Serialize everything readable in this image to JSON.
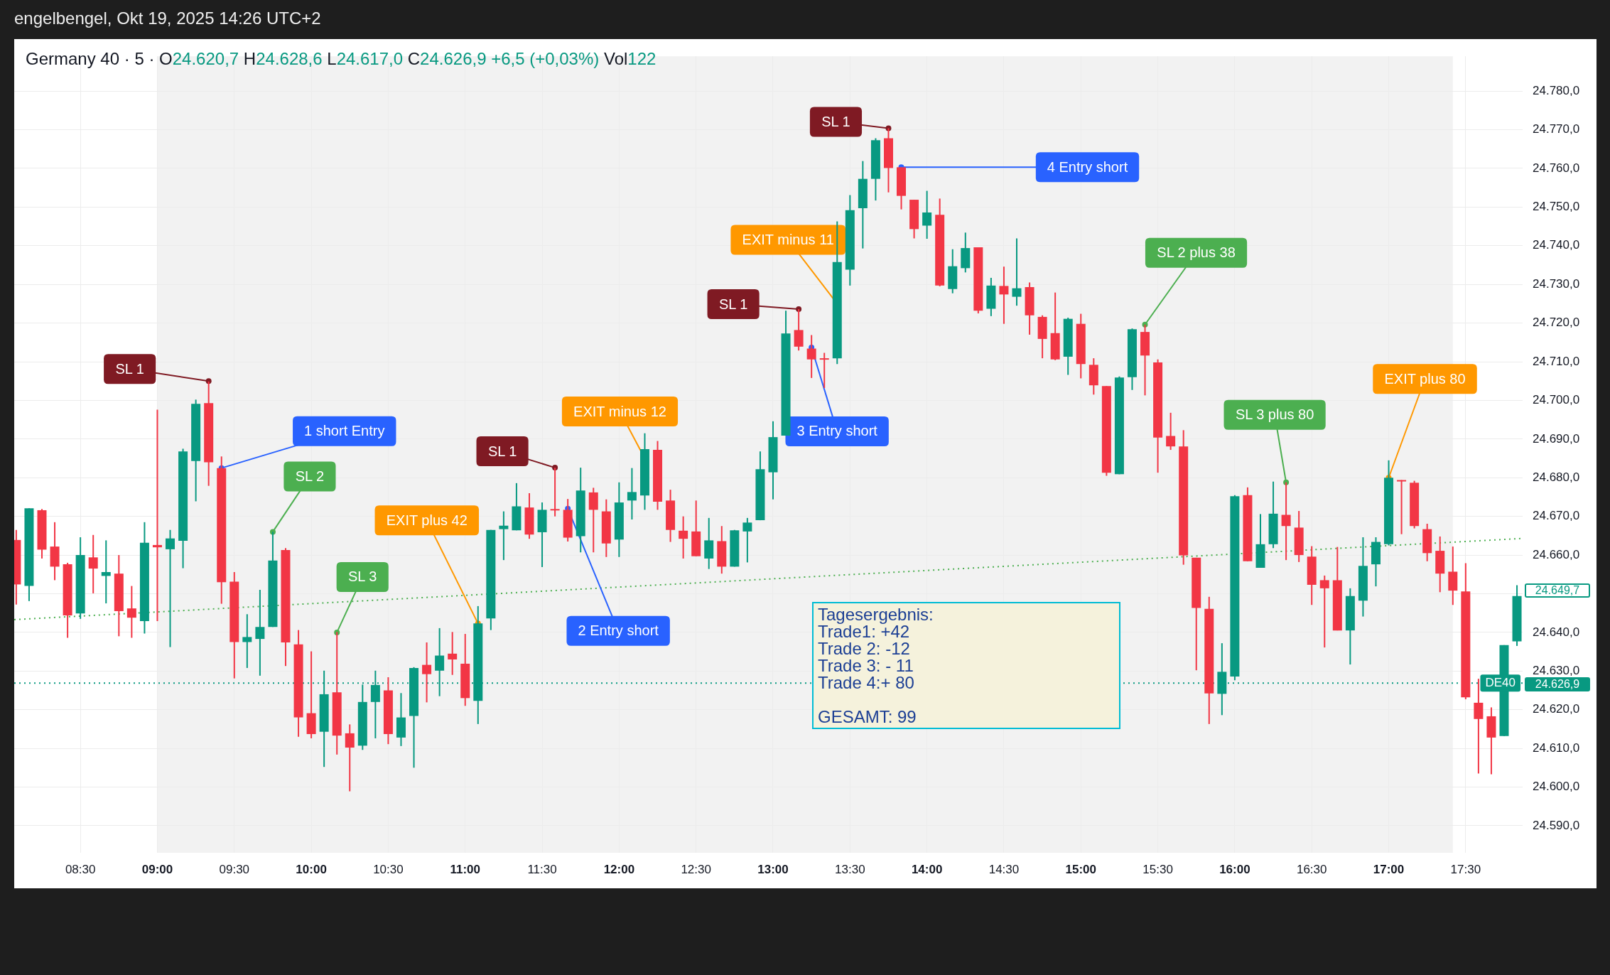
{
  "chart_data": {
    "type": "candlestick",
    "title": "engelbengel, Okt 19, 2025 14:26 UTC+2",
    "subtitle": "Germany 40 · 5 · O24.620,7 H24.628,6 L24.617,0 C24.626,9 +6,5 (+0,03%) Vol122",
    "x": [
      8.0833,
      8.1667,
      8.25,
      8.3333,
      8.4167,
      8.5,
      8.5833,
      8.6667,
      8.75,
      8.8333,
      8.9167,
      9,
      9.0833,
      9.1667,
      9.25,
      9.3333,
      9.4167,
      9.5,
      9.5833,
      9.6667,
      9.75,
      9.8333,
      9.9167,
      10,
      10.0833,
      10.1667,
      10.25,
      10.3333,
      10.4167,
      10.5,
      10.5833,
      10.6667,
      10.75,
      10.8333,
      10.9167,
      11,
      11.0833,
      11.1667,
      11.25,
      11.3333,
      11.4167,
      11.5,
      11.5833,
      11.6667,
      11.75,
      11.8333,
      11.9167,
      12,
      12.0833,
      12.1667,
      12.25,
      12.3333,
      12.4167,
      12.5,
      12.5833,
      12.6667,
      12.75,
      12.8333,
      12.9167,
      13,
      13.0833,
      13.1667,
      13.25,
      13.3333,
      13.4167,
      13.5,
      13.5833,
      13.6667,
      13.75,
      13.8333,
      13.9167,
      14,
      14.0833,
      14.1667,
      14.25,
      14.3333,
      14.4167,
      14.5,
      14.5833,
      14.6667,
      14.75,
      14.8333,
      14.9167,
      15,
      15.0833,
      15.1667,
      15.25,
      15.3333,
      15.4167,
      15.5,
      15.5833,
      15.6667,
      15.75,
      15.8333,
      15.9167,
      16,
      16.0833,
      16.1667,
      16.25,
      16.3333,
      16.4167,
      16.5,
      16.5833,
      16.6667,
      16.75,
      16.8333,
      16.9167,
      17,
      17.0833,
      17.1667,
      17.25,
      17.3333,
      17.4167,
      17.5,
      17.5833,
      17.6667,
      17.75,
      17.8333
    ],
    "ohlc": [
      [
        24663.9,
        24666.5,
        24647.2,
        24652.4
      ],
      [
        24652.0,
        24672.1,
        24648.1,
        24672.1
      ],
      [
        24671.6,
        24671.9,
        24659.1,
        24661.4
      ],
      [
        24662.2,
        24668.5,
        24653.5,
        24657.0
      ],
      [
        24657.6,
        24658.0,
        24638.6,
        24644.4
      ],
      [
        24644.9,
        24664.6,
        24643.5,
        24660.0
      ],
      [
        24659.4,
        24665.2,
        24650.1,
        24656.5
      ],
      [
        24654.6,
        24663.8,
        24647.5,
        24655.6
      ],
      [
        24655.2,
        24660.0,
        24639.0,
        24645.5
      ],
      [
        24646.2,
        24652.0,
        24638.6,
        24643.8
      ],
      [
        24642.9,
        24668.5,
        24639.7,
        24663.2
      ],
      [
        24662.6,
        24697.6,
        24642.9,
        24662.0
      ],
      [
        24661.5,
        24666.5,
        24636.2,
        24664.3
      ],
      [
        24663.7,
        24687.5,
        24656.6,
        24686.8
      ],
      [
        24684.3,
        24700.2,
        24673.9,
        24699.1
      ],
      [
        24699.3,
        24704.9,
        24677.9,
        24684.0
      ],
      [
        24682.5,
        24685.5,
        24647.4,
        24653.0
      ],
      [
        24653.1,
        24655.6,
        24628.1,
        24637.5
      ],
      [
        24637.5,
        24644.7,
        24630.8,
        24638.8
      ],
      [
        24638.3,
        24651.0,
        24628.8,
        24641.4
      ],
      [
        24641.4,
        24666.0,
        24641.4,
        24658.6
      ],
      [
        24661.3,
        24661.8,
        24631.3,
        24637.4
      ],
      [
        24636.9,
        24640.6,
        24613.0,
        24618.0
      ],
      [
        24619.1,
        24635.1,
        24612.6,
        24613.7
      ],
      [
        24614.3,
        24630.1,
        24605.2,
        24624.0
      ],
      [
        24624.5,
        24640.1,
        24608.4,
        24613.3
      ],
      [
        24613.9,
        24616.2,
        24598.9,
        24610.2
      ],
      [
        24610.7,
        24626.5,
        24609.6,
        24622.0
      ],
      [
        24622.0,
        24630.1,
        24612.6,
        24626.4
      ],
      [
        24625.0,
        24628.4,
        24611.1,
        24613.7
      ],
      [
        24612.8,
        24624.3,
        24610.6,
        24618.0
      ],
      [
        24618.4,
        24631.0,
        24605.0,
        24630.8
      ],
      [
        24631.6,
        24637.4,
        24621.9,
        24629.2
      ],
      [
        24630.1,
        24641.1,
        24623.5,
        24634.0
      ],
      [
        24634.5,
        24640.1,
        24629.0,
        24633.0
      ],
      [
        24631.9,
        24639.6,
        24621.0,
        24623.0
      ],
      [
        24622.3,
        24646.8,
        24616.3,
        24642.3
      ],
      [
        24643.6,
        24666.5,
        24640.6,
        24666.5
      ],
      [
        24666.7,
        24671.3,
        24658.7,
        24667.6
      ],
      [
        24666.4,
        24678.6,
        24666.4,
        24672.6
      ],
      [
        24672.3,
        24676.0,
        24664.2,
        24665.3
      ],
      [
        24665.9,
        24673.6,
        24656.9,
        24671.7
      ],
      [
        24671.9,
        24682.6,
        24670.0,
        24671.7
      ],
      [
        24671.7,
        24674.5,
        24663.5,
        24664.5
      ],
      [
        24664.9,
        24682.6,
        24660.7,
        24676.7
      ],
      [
        24676.2,
        24677.4,
        24660.7,
        24671.7
      ],
      [
        24671.3,
        24674.4,
        24659.5,
        24663.0
      ],
      [
        24664.0,
        24678.8,
        24659.5,
        24673.6
      ],
      [
        24674.1,
        24682.5,
        24669.2,
        24676.3
      ],
      [
        24675.4,
        24691.5,
        24671.7,
        24687.4
      ],
      [
        24687.2,
        24689.5,
        24671.7,
        24673.8
      ],
      [
        24674.1,
        24676.9,
        24663.4,
        24666.5
      ],
      [
        24666.3,
        24670.0,
        24659.1,
        24664.2
      ],
      [
        24666.1,
        24674.1,
        24659.7,
        24659.7
      ],
      [
        24659.1,
        24669.6,
        24656.4,
        24663.8
      ],
      [
        24663.6,
        24667.5,
        24655.2,
        24657.0
      ],
      [
        24657.0,
        24666.5,
        24657.0,
        24666.4
      ],
      [
        24666.1,
        24669.6,
        24658.1,
        24668.4
      ],
      [
        24669.0,
        24686.8,
        24669.0,
        24682.2
      ],
      [
        24681.4,
        24694.6,
        24674.4,
        24690.5
      ],
      [
        24690.9,
        24723.2,
        24690.9,
        24717.3
      ],
      [
        24718.2,
        24723.6,
        24712.9,
        24713.9
      ],
      [
        24713.4,
        24716.9,
        24705.8,
        24710.6
      ],
      [
        24710.9,
        24712.3,
        24703.2,
        24710.6
      ],
      [
        24710.9,
        24746.3,
        24709.4,
        24735.8
      ],
      [
        24733.8,
        24753.1,
        24729.7,
        24749.2
      ],
      [
        24749.7,
        24761.9,
        24739.3,
        24757.3
      ],
      [
        24757.3,
        24767.8,
        24751.7,
        24767.3
      ],
      [
        24767.8,
        24770.4,
        24753.8,
        24760.1
      ],
      [
        24760.3,
        24760.3,
        24749.4,
        24752.9
      ],
      [
        24751.9,
        24751.9,
        24741.9,
        24744.3
      ],
      [
        24745.2,
        24754.2,
        24741.8,
        24748.6
      ],
      [
        24748.0,
        24752.2,
        24729.5,
        24729.7
      ],
      [
        24728.8,
        24739.1,
        24727.7,
        24734.7
      ],
      [
        24734.2,
        24743.4,
        24733.1,
        24739.4
      ],
      [
        24739.6,
        24739.6,
        24722.5,
        24723.2
      ],
      [
        24723.7,
        24731.7,
        24721.8,
        24729.7
      ],
      [
        24729.6,
        24734.6,
        24719.8,
        24727.4
      ],
      [
        24726.8,
        24741.9,
        24724.5,
        24729.0
      ],
      [
        24729.3,
        24730.5,
        24717.0,
        24722.0
      ],
      [
        24721.6,
        24722.0,
        24710.9,
        24715.9
      ],
      [
        24717.4,
        24727.9,
        24710.4,
        24710.6
      ],
      [
        24711.3,
        24721.4,
        24706.6,
        24721.1
      ],
      [
        24719.8,
        24722.4,
        24705.7,
        24709.4
      ],
      [
        24709.2,
        24710.9,
        24701.5,
        24703.9
      ],
      [
        24703.7,
        24703.7,
        24680.5,
        24681.3
      ],
      [
        24680.9,
        24706.2,
        24680.9,
        24705.9
      ],
      [
        24706.0,
        24718.6,
        24702.7,
        24718.4
      ],
      [
        24717.7,
        24719.6,
        24701.3,
        24711.6
      ],
      [
        24709.8,
        24710.6,
        24681.3,
        24690.4
      ],
      [
        24690.8,
        24696.8,
        24687.2,
        24688.1
      ],
      [
        24688.1,
        24692.3,
        24657.5,
        24659.9
      ],
      [
        24659.3,
        24659.3,
        24630.2,
        24646.3
      ],
      [
        24646.1,
        24649.2,
        24616.3,
        24624.2
      ],
      [
        24624.1,
        24637.2,
        24618.6,
        24629.8
      ],
      [
        24628.6,
        24675.5,
        24627.6,
        24675.2
      ],
      [
        24675.5,
        24677.5,
        24658.4,
        24658.4
      ],
      [
        24656.7,
        24670.6,
        24656.7,
        24662.8
      ],
      [
        24662.8,
        24679.0,
        24661.8,
        24670.7
      ],
      [
        24670.4,
        24678.8,
        24658.7,
        24667.5
      ],
      [
        24667.1,
        24671.4,
        24658.2,
        24660.0
      ],
      [
        24659.6,
        24662.3,
        24647.1,
        24652.3
      ],
      [
        24653.5,
        24654.7,
        24636.1,
        24651.4
      ],
      [
        24653.5,
        24662.1,
        24640.5,
        24640.5
      ],
      [
        24640.5,
        24651.4,
        24631.7,
        24649.4
      ],
      [
        24648.2,
        24664.6,
        24644.1,
        24657.2
      ],
      [
        24657.6,
        24664.6,
        24651.9,
        24663.4
      ],
      [
        24662.8,
        24684.5,
        24662.5,
        24680.0
      ],
      [
        24679.4,
        24679.4,
        24665.4,
        24679.1
      ],
      [
        24678.7,
        24679.2,
        24666.9,
        24667.5
      ],
      [
        24666.7,
        24668.1,
        24658.4,
        24660.5
      ],
      [
        24661.1,
        24664.8,
        24650.4,
        24655.2
      ],
      [
        24655.7,
        24662.2,
        24647.1,
        24650.8
      ],
      [
        24650.6,
        24657.9,
        24622.7,
        24623.2
      ],
      [
        24621.8,
        24628.0,
        24603.5,
        24617.6
      ],
      [
        24618.3,
        24620.6,
        24603.3,
        24612.8
      ],
      [
        24613.2,
        24636.7,
        24613.2,
        24636.7
      ],
      [
        24637.7,
        24652.2,
        24636.5,
        24649.4
      ]
    ],
    "colors": [
      "#f23645",
      "#089981",
      "#f23645",
      "#f23645",
      "#f23645",
      "#089981",
      "#f23645",
      "#089981",
      "#f23645",
      "#f23645",
      "#089981",
      "#f23645",
      "#089981",
      "#089981",
      "#089981",
      "#f23645",
      "#f23645",
      "#f23645",
      "#089981",
      "#089981",
      "#089981",
      "#f23645",
      "#f23645",
      "#f23645",
      "#089981",
      "#f23645",
      "#f23645",
      "#089981",
      "#089981",
      "#f23645",
      "#089981",
      "#089981",
      "#f23645",
      "#089981",
      "#f23645",
      "#f23645",
      "#089981",
      "#089981",
      "#089981",
      "#089981",
      "#f23645",
      "#089981",
      "#f23645",
      "#f23645",
      "#089981",
      "#f23645",
      "#f23645",
      "#089981",
      "#089981",
      "#089981",
      "#f23645",
      "#f23645",
      "#f23645",
      "#f23645",
      "#089981",
      "#f23645",
      "#089981",
      "#089981",
      "#089981",
      "#089981",
      "#089981",
      "#f23645",
      "#f23645",
      "#f23645",
      "#089981",
      "#089981",
      "#089981",
      "#089981",
      "#f23645",
      "#f23645",
      "#f23645",
      "#089981",
      "#f23645",
      "#089981",
      "#089981",
      "#f23645",
      "#089981",
      "#f23645",
      "#089981",
      "#f23645",
      "#f23645",
      "#f23645",
      "#089981",
      "#f23645",
      "#f23645",
      "#f23645",
      "#089981",
      "#089981",
      "#f23645",
      "#f23645",
      "#f23645",
      "#f23645",
      "#f23645",
      "#f23645",
      "#089981",
      "#089981",
      "#f23645",
      "#089981",
      "#089981",
      "#f23645",
      "#f23645",
      "#f23645",
      "#f23645",
      "#f23645",
      "#089981",
      "#089981",
      "#089981",
      "#089981",
      "#f23645",
      "#f23645",
      "#f23645",
      "#f23645",
      "#f23645",
      "#f23645",
      "#f23645",
      "#f23645",
      "#089981",
      "#089981"
    ],
    "series": [
      {
        "type": "line",
        "x": [
          8.07,
          17.87
        ],
        "values": [
          24643.3,
          24664.3
        ],
        "color": "#4caf50",
        "line_style": "dotted"
      }
    ],
    "xlim": [
      8.07,
      17.87
    ],
    "xticks": [
      {
        "value": 8.5,
        "label": "08:30"
      },
      {
        "value": 9,
        "label": "09:00"
      },
      {
        "value": 9.5,
        "label": "09:30"
      },
      {
        "value": 10,
        "label": "10:00"
      },
      {
        "value": 10.5,
        "label": "10:30"
      },
      {
        "value": 11,
        "label": "11:00"
      },
      {
        "value": 11.5,
        "label": "11:30"
      },
      {
        "value": 12,
        "label": "12:00"
      },
      {
        "value": 12.5,
        "label": "12:30"
      },
      {
        "value": 13,
        "label": "13:00"
      },
      {
        "value": 13.5,
        "label": "13:30"
      },
      {
        "value": 14,
        "label": "14:00"
      },
      {
        "value": 14.5,
        "label": "14:30"
      },
      {
        "value": 15,
        "label": "15:00"
      },
      {
        "value": 15.5,
        "label": "15:30"
      },
      {
        "value": 16,
        "label": "16:00"
      },
      {
        "value": 16.5,
        "label": "16:30"
      },
      {
        "value": 17,
        "label": "17:00"
      },
      {
        "value": 17.5,
        "label": "17:30"
      }
    ],
    "ylim": [
      24583,
      24789
    ],
    "yticks": [
      {
        "value": 24590,
        "label": "24.590,0"
      },
      {
        "value": 24600,
        "label": "24.600,0"
      },
      {
        "value": 24610,
        "label": "24.610,0"
      },
      {
        "value": 24620,
        "label": "24.620,0"
      },
      {
        "value": 24630,
        "label": "24.630,0"
      },
      {
        "value": 24640,
        "label": "24.640,0"
      },
      {
        "value": 24650,
        "label": null
      },
      {
        "value": 24660,
        "label": "24.660,0"
      },
      {
        "value": 24670,
        "label": "24.670,0"
      },
      {
        "value": 24680,
        "label": "24.680,0"
      },
      {
        "value": 24690,
        "label": "24.690,0"
      },
      {
        "value": 24700,
        "label": "24.700,0"
      },
      {
        "value": 24710,
        "label": "24.710,0"
      },
      {
        "value": 24720,
        "label": "24.720,0"
      },
      {
        "value": 24730,
        "label": "24.730,0"
      },
      {
        "value": 24740,
        "label": "24.740,0"
      },
      {
        "value": 24750,
        "label": "24.750,0"
      },
      {
        "value": 24760,
        "label": "24.760,0"
      },
      {
        "value": 24770,
        "label": "24.770,0"
      },
      {
        "value": 24780,
        "label": "24.780,0"
      }
    ],
    "ref_lines": [
      {
        "axis": "y",
        "value": 24626.9,
        "label": "DE40",
        "color": "#089981",
        "line_style": "dotted"
      }
    ],
    "bands": [
      {
        "axis": "x",
        "from": 9,
        "to": 17.4167,
        "color": "#f2f2f2"
      }
    ],
    "annotations": [
      {
        "text": "SL 1",
        "x": 9.3333,
        "y": 24705
      },
      {
        "text": "1 short Entry",
        "x": 9.4167,
        "y": 24682.5
      },
      {
        "text": "SL 2",
        "x": 9.75,
        "y": 24666
      },
      {
        "text": "SL 3",
        "x": 10.1667,
        "y": 24640
      },
      {
        "text": "EXIT plus 42",
        "x": 11.0833,
        "y": 24642.3
      },
      {
        "text": "SL 1",
        "x": 11.5833,
        "y": 24682.6
      },
      {
        "text": "2 Entry short",
        "x": 11.6667,
        "y": 24672
      },
      {
        "text": "EXIT minus 12",
        "x": 12.1667,
        "y": 24685
      },
      {
        "text": "SL 1",
        "x": 13.1667,
        "y": 24723.6
      },
      {
        "text": "3 Entry short",
        "x": 13.25,
        "y": 24713.7
      },
      {
        "text": "EXIT minus 11",
        "x": 13.4167,
        "y": 24725
      },
      {
        "text": "SL 1",
        "x": 13.75,
        "y": 24770.4
      },
      {
        "text": "4 Entry short",
        "x": 13.8333,
        "y": 24760.3
      },
      {
        "text": "SL 2 plus 38",
        "x": 15.4167,
        "y": 24719.6
      },
      {
        "text": "SL 3 plus 80",
        "x": 16.3333,
        "y": 24678.8
      },
      {
        "text": "EXIT plus 80",
        "x": 17,
        "y": 24680
      },
      "Tagesergebnis:\nTrade1: +42\nTrade 2: -12\nTrade 3: - 11\nTrade 4:+ 80\n\nGESAMT: 99",
      "24.649,7",
      "24.626,9"
    ],
    "grid": true
  }
}
